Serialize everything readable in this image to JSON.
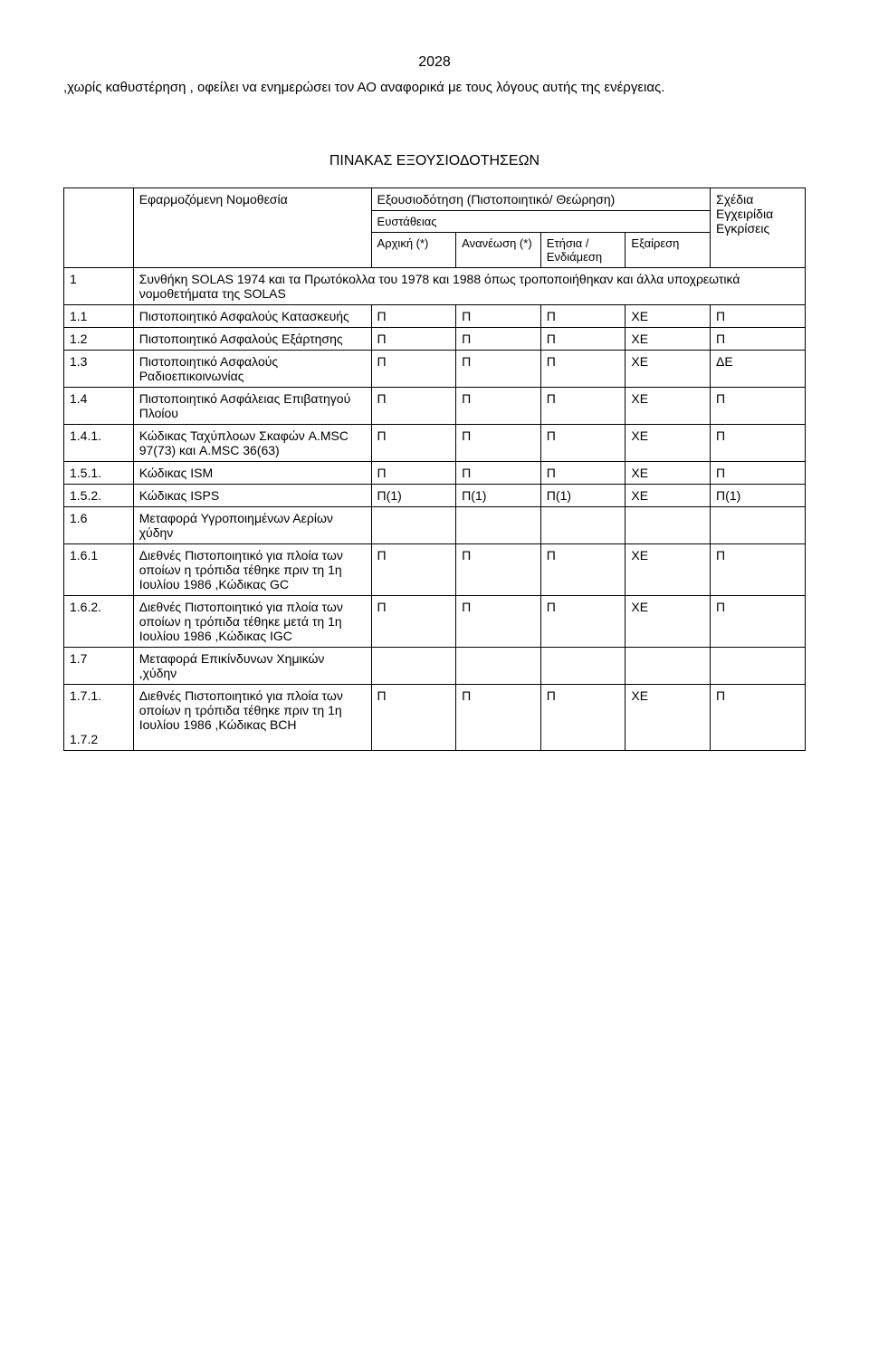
{
  "pageNumber": "2028",
  "paragraph": ",χωρίς καθυστέρηση , οφείλει να ενημερώσει τον ΑΟ αναφορικά με τους λόγους αυτής της ενέργειας.",
  "tableTitle": "ΠΙΝΑΚΑΣ ΕΞΟΥΣΙΟΔΟΤΗΣΕΩΝ",
  "headers": {
    "col1": "Εφαρμοζόμενη Νομοθεσία",
    "col2": "Εξουσιοδότηση (Πιστοποιητικό/ Θεώρηση)",
    "col3": "Σχέδια Εγχειρίδια Εγκρίσεις",
    "subRow1": "Ευστάθειας",
    "arxiki": "Αρχική (*)",
    "ananeosi": "Ανανέωση (*)",
    "etisia": "Ετήσια /Ενδιάμεση",
    "exairesi": "Εξαίρεση"
  },
  "rows": [
    {
      "num": "1",
      "desc": "Συνθήκη SOLAS 1974 και τα Πρωτόκολλα του 1978 και 1988 όπως τροποποιήθηκαν και άλλα υποχρεωτικά νομοθετήματα της SOLAS",
      "span": true
    },
    {
      "num": "1.1",
      "desc": "Πιστοποιητικό Ασφαλούς Κατασκευής",
      "c1": "Π",
      "c2": "Π",
      "c3": "Π",
      "c4": "ΧΕ",
      "c5": "Π"
    },
    {
      "num": "1.2",
      "desc": "Πιστοποιητικό Ασφαλούς Εξάρτησης",
      "c1": "Π",
      "c2": "Π",
      "c3": "Π",
      "c4": "ΧΕ",
      "c5": "Π"
    },
    {
      "num": "1.3",
      "desc": "Πιστοποιητικό Ασφαλούς Ραδιοεπικοινωνίας",
      "c1": "Π",
      "c2": "Π",
      "c3": "Π",
      "c4": "ΧΕ",
      "c5": "ΔΕ"
    },
    {
      "num": "1.4",
      "desc": "Πιστοποιητικό Ασφάλειας Επιβατηγού Πλοίου",
      "c1": "Π",
      "c2": "Π",
      "c3": "Π",
      "c4": "ΧΕ",
      "c5": "Π"
    },
    {
      "num": "1.4.1.",
      "desc": "Κώδικας Ταχύπλοων Σκαφών A.MSC 97(73) και A.MSC 36(63)",
      "c1": "Π",
      "c2": "Π",
      "c3": "Π",
      "c4": "ΧΕ",
      "c5": "Π"
    },
    {
      "num": "1.5.1.",
      "desc": "Κώδικας ISM",
      "c1": "Π",
      "c2": "Π",
      "c3": "Π",
      "c4": "ΧΕ",
      "c5": "Π"
    },
    {
      "num": "1.5.2.",
      "desc": "Κώδικας ISPS",
      "c1": "Π(1)",
      "c2": "Π(1)",
      "c3": "Π(1)",
      "c4": "ΧΕ",
      "c5": "Π(1)"
    },
    {
      "num": "1.6",
      "desc": "Μεταφορά Υγροποιημένων Αερίων χύδην",
      "c1": "",
      "c2": "",
      "c3": "",
      "c4": "",
      "c5": ""
    },
    {
      "num": "1.6.1",
      "desc": "Διεθνές Πιστοποιητικό για πλοία των οποίων η τρόπιδα τέθηκε πριν τη 1η Ιουλίου 1986 ,Κώδικας GC",
      "c1": "Π",
      "c2": "Π",
      "c3": "Π",
      "c4": "ΧΕ",
      "c5": "Π"
    },
    {
      "num": "1.6.2.",
      "desc": "Διεθνές Πιστοποιητικό για πλοία των οποίων η τρόπιδα τέθηκε μετά τη 1η Ιουλίου 1986 ,Κώδικας IGC",
      "c1": "Π",
      "c2": "Π",
      "c3": "Π",
      "c4": "ΧΕ",
      "c5": "Π"
    },
    {
      "num": "1.7",
      "desc": "Μεταφορά Επικίνδυνων Χημικών ,χύδην",
      "c1": "",
      "c2": "",
      "c3": "",
      "c4": "",
      "c5": ""
    },
    {
      "num": "1.7.1.",
      "desc": "Διεθνές Πιστοποιητικό για πλοία των οποίων η τρόπιδα τέθηκε πριν τη 1η Ιουλίου 1986 ,Κώδικας BCH",
      "c1": "Π",
      "c2": "Π",
      "c3": "Π",
      "c4": "ΧΕ",
      "c5": "Π",
      "extraNum": "1.7.2"
    }
  ]
}
